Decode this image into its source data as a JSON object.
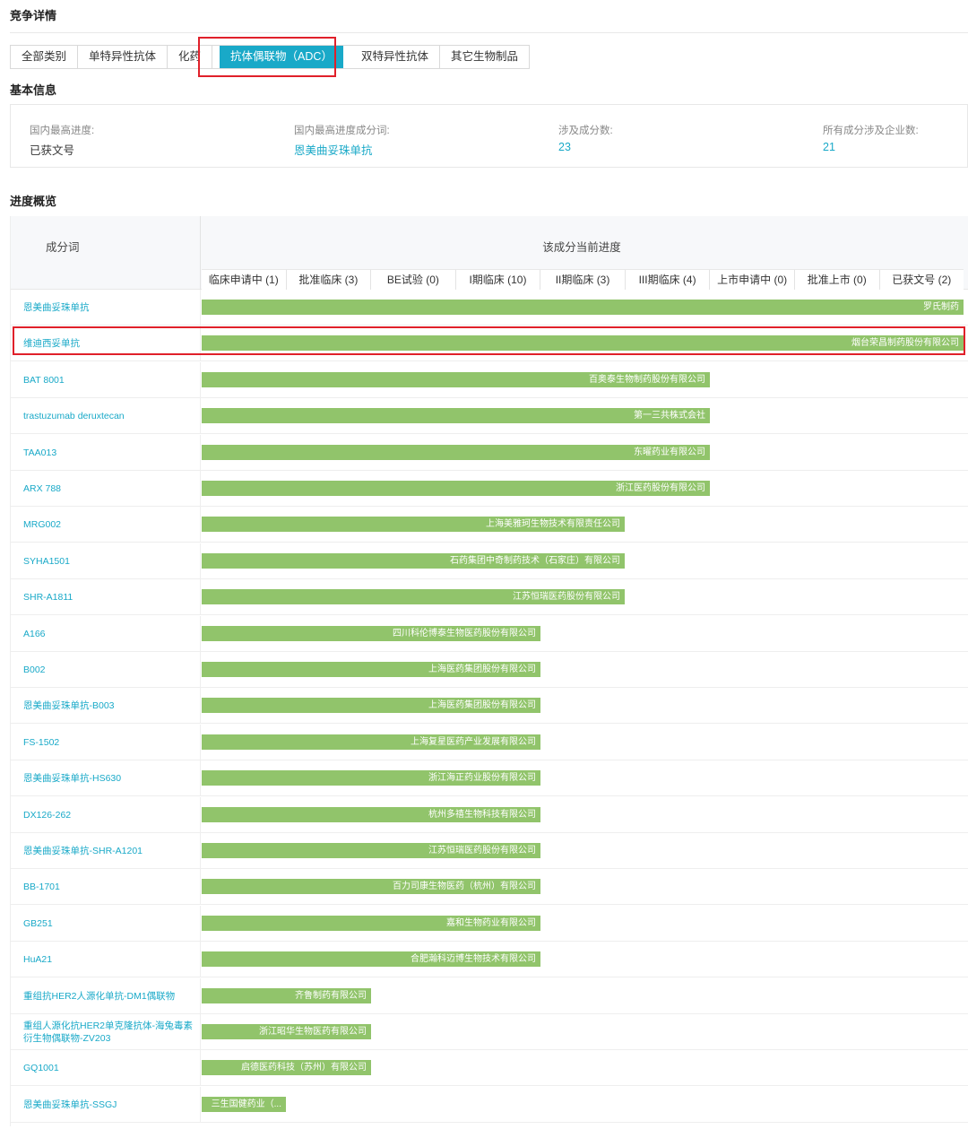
{
  "page": {
    "title": "竞争详情",
    "basic_title": "基本信息",
    "progress_title": "进度概览"
  },
  "tabs": [
    {
      "label": "全部类别"
    },
    {
      "label": "单特异性抗体"
    },
    {
      "label": "化药"
    },
    {
      "label": "抗体偶联物（ADC）",
      "active": true
    },
    {
      "label": "双特异性抗体"
    },
    {
      "label": "其它生物制品"
    }
  ],
  "info": {
    "highest_stage_label": "国内最高进度:",
    "highest_stage_value": "已获文号",
    "highest_ingredient_label": "国内最高进度成分词:",
    "highest_ingredient_value": "恩美曲妥珠单抗",
    "ingredient_count_label": "涉及成分数:",
    "ingredient_count_value": "23",
    "company_count_label": "所有成分涉及企业数:",
    "company_count_value": "21"
  },
  "table": {
    "name_header": "成分词",
    "progress_header": "该成分当前进度",
    "stages": [
      "临床申请中 (1)",
      "批准临床 (3)",
      "BE试验 (0)",
      "I期临床 (10)",
      "II期临床 (3)",
      "III期临床 (4)",
      "上市申请中 (0)",
      "批准上市 (0)",
      "已获文号 (2)"
    ],
    "rows": [
      {
        "name": "恩美曲妥珠单抗",
        "company": "罗氏制药",
        "stage_index": 8
      },
      {
        "name": "维迪西妥单抗",
        "company": "烟台荣昌制药股份有限公司",
        "stage_index": 8
      },
      {
        "name": "BAT 8001",
        "company": "百奥泰生物制药股份有限公司",
        "stage_index": 5
      },
      {
        "name": "trastuzumab deruxtecan",
        "company": "第一三共株式会社",
        "stage_index": 5
      },
      {
        "name": "TAA013",
        "company": "东曜药业有限公司",
        "stage_index": 5
      },
      {
        "name": "ARX 788",
        "company": "浙江医药股份有限公司",
        "stage_index": 5
      },
      {
        "name": "MRG002",
        "company": "上海美雅珂生物技术有限责任公司",
        "stage_index": 4
      },
      {
        "name": "SYHA1501",
        "company": "石药集团中奇制药技术（石家庄）有限公司",
        "stage_index": 4
      },
      {
        "name": "SHR-A1811",
        "company": "江苏恒瑞医药股份有限公司",
        "stage_index": 4
      },
      {
        "name": "A166",
        "company": "四川科伦博泰生物医药股份有限公司",
        "stage_index": 3
      },
      {
        "name": "B002",
        "company": "上海医药集团股份有限公司",
        "stage_index": 3
      },
      {
        "name": "恩美曲妥珠单抗-B003",
        "company": "上海医药集团股份有限公司",
        "stage_index": 3
      },
      {
        "name": "FS-1502",
        "company": "上海复星医药产业发展有限公司",
        "stage_index": 3
      },
      {
        "name": "恩美曲妥珠单抗-HS630",
        "company": "浙江海正药业股份有限公司",
        "stage_index": 3
      },
      {
        "name": "DX126-262",
        "company": "杭州多禧生物科技有限公司",
        "stage_index": 3
      },
      {
        "name": "恩美曲妥珠单抗-SHR-A1201",
        "company": "江苏恒瑞医药股份有限公司",
        "stage_index": 3
      },
      {
        "name": "BB-1701",
        "company": "百力司康生物医药（杭州）有限公司",
        "stage_index": 3
      },
      {
        "name": "GB251",
        "company": "嘉和生物药业有限公司",
        "stage_index": 3
      },
      {
        "name": "HuA21",
        "company": "合肥瀚科迈博生物技术有限公司",
        "stage_index": 3
      },
      {
        "name": "重组抗HER2人源化单抗-DM1偶联物",
        "company": "齐鲁制药有限公司",
        "stage_index": 1
      },
      {
        "name": "重组人源化抗HER2单克隆抗体-海兔毒素衍生物偶联物-ZV203",
        "company": "浙江昭华生物医药有限公司",
        "stage_index": 1
      },
      {
        "name": "GQ1001",
        "company": "启德医药科技（苏州）有限公司",
        "stage_index": 1
      },
      {
        "name": "恩美曲妥珠单抗-SSGJ",
        "company": "三生国健药业（...",
        "stage_index": 0
      }
    ]
  },
  "colors": {
    "accent": "#19a9c8",
    "bar": "#91c46b",
    "highlight": "#e0202a"
  }
}
